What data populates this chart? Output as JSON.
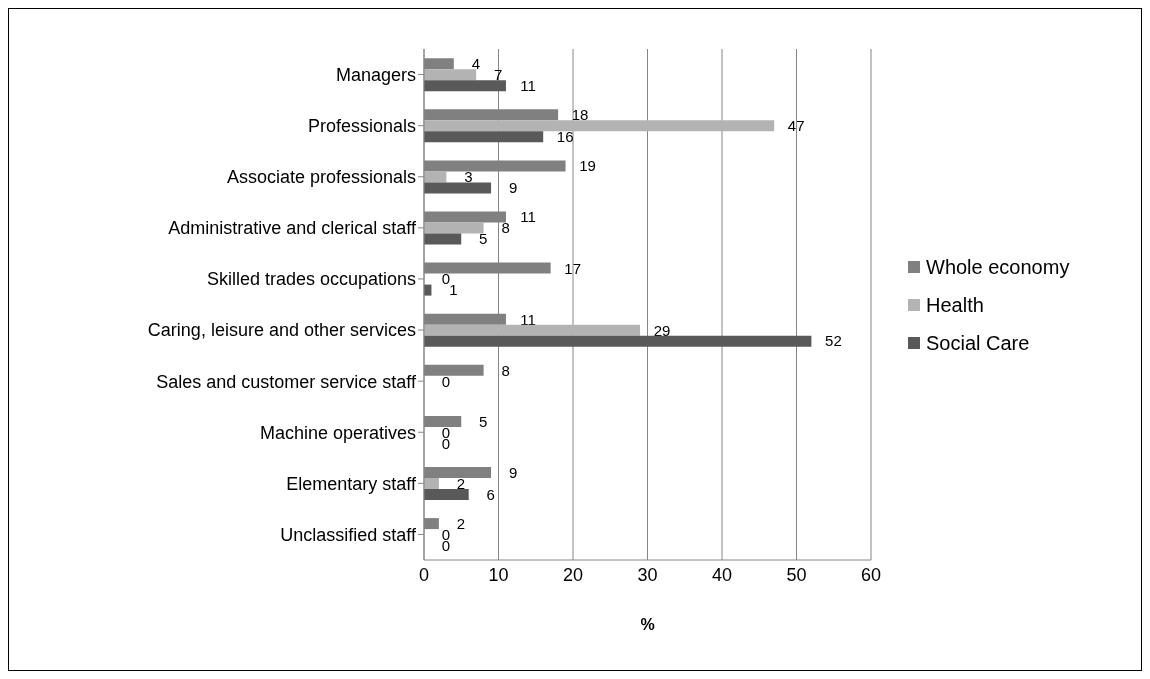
{
  "chart_data": {
    "type": "bar",
    "orientation": "horizontal",
    "xlabel": "%",
    "categories": [
      "Managers",
      "Professionals",
      "Associate professionals",
      "Administrative and clerical staff",
      "Skilled trades occupations",
      "Caring, leisure and other services",
      "Sales and customer service staff",
      "Machine operatives",
      "Elementary staff",
      "Unclassified staff"
    ],
    "series": [
      {
        "name": "Whole economy",
        "color": "#808080",
        "values": [
          4,
          18,
          19,
          11,
          17,
          11,
          8,
          5,
          9,
          2
        ],
        "value_labels": [
          "4",
          "18",
          "19",
          "11",
          "17",
          "11",
          "8",
          "5",
          "9",
          "2"
        ]
      },
      {
        "name": "Health",
        "color": "#b3b3b3",
        "values": [
          7,
          47,
          3,
          8,
          0,
          29,
          0,
          0,
          2,
          0
        ],
        "value_labels": [
          "7",
          "47",
          "3",
          "8",
          "0",
          "29",
          "0",
          "0",
          "2",
          "0"
        ]
      },
      {
        "name": "Social Care",
        "color": "#595959",
        "values": [
          11,
          16,
          9,
          5,
          1,
          52,
          0,
          0,
          6,
          0
        ],
        "value_labels": [
          "11",
          "16",
          "9",
          "5",
          "1",
          "52",
          null,
          "0",
          "6",
          "0"
        ]
      }
    ],
    "xlim": [
      0,
      60
    ],
    "xticks": [
      0,
      10,
      20,
      30,
      40,
      50,
      60
    ],
    "grid": "x",
    "legend": "right"
  }
}
